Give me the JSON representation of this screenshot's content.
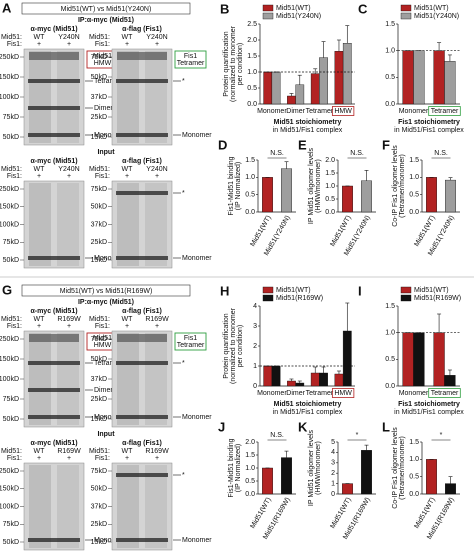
{
  "blot_panels": [
    {
      "letter": "A",
      "header": "Mid51(WT) vs Mid51(Y240N)",
      "ip_label": "IP:α-myc (Mid51)",
      "input_label": "Input",
      "blots": [
        {
          "title": "α-myc (Mid51)",
          "rows": [
            [
              "Mid51:",
              "WT",
              "Y240N"
            ],
            [
              "Fis1:",
              "+",
              "+"
            ]
          ],
          "markers": [
            "250kD",
            "150kD",
            "100kD",
            "75kD",
            "50kD"
          ],
          "boxed": [
            "Mid51",
            "HMW"
          ],
          "boxed_color": "#b22222",
          "annotations": [
            "Tetramer",
            "Dimer",
            "Monomer"
          ]
        },
        {
          "title": "α-flag (Fis1)",
          "rows": [
            [
              "Mid51:",
              "WT",
              "Y240N"
            ],
            [
              "Fis1:",
              "+",
              "+"
            ]
          ],
          "markers": [
            "75kD",
            "50kD",
            "37kD",
            "25kD",
            "15kD"
          ],
          "boxed": [
            "Fis1",
            "Tetramer"
          ],
          "boxed_color": "#2e9e3e",
          "annotations": [
            "*",
            "Monomer"
          ]
        },
        {
          "title": "α-myc (Mid51)",
          "rows": [
            [
              "Mid51:",
              "WT",
              "Y240N"
            ],
            [
              "Fis1:",
              "+",
              "+"
            ]
          ],
          "markers": [
            "250kD",
            "150kD",
            "100kD",
            "75kD",
            "50kD"
          ],
          "annotations": [
            "Monomer"
          ]
        },
        {
          "title": "α-flag (Fis1)",
          "rows": [
            [
              "Mid51:",
              "WT",
              "Y240N"
            ],
            [
              "Fis1:",
              "+",
              "+"
            ]
          ],
          "markers": [
            "75kD",
            "50kD",
            "37kD",
            "25kD",
            "15kD"
          ],
          "annotations": [
            "*",
            "Monomer"
          ]
        }
      ]
    },
    {
      "letter": "G",
      "header": "Mid51(WT) vs Mid51(R169W)",
      "ip_label": "IP:α-myc (Mid51)",
      "input_label": "Input",
      "blots": [
        {
          "title": "α-myc (Mid51)",
          "rows": [
            [
              "Mid51:",
              "WT",
              "R169W"
            ],
            [
              "Fis1:",
              "+",
              "+"
            ]
          ],
          "markers": [
            "250kD",
            "150kD",
            "100kD",
            "75kD",
            "50kD"
          ],
          "boxed": [
            "Mid51",
            "HMW"
          ],
          "boxed_color": "#b22222",
          "annotations": [
            "Tetramer",
            "Dimer",
            "Monomer"
          ]
        },
        {
          "title": "α-flag (Fis1)",
          "rows": [
            [
              "Mid51:",
              "WT",
              "R169W"
            ],
            [
              "Fis1:",
              "+",
              "+"
            ]
          ],
          "markers": [
            "75kD",
            "50kD",
            "37kD",
            "25kD",
            "15kD"
          ],
          "boxed": [
            "Fis1",
            "Tetramer"
          ],
          "boxed_color": "#2e9e3e",
          "annotations": [
            "*",
            "Monomer"
          ]
        },
        {
          "title": "α-myc (Mid51)",
          "rows": [
            [
              "Mid51:",
              "WT",
              "R169W"
            ],
            [
              "Fis1:",
              "+",
              "+"
            ]
          ],
          "markers": [
            "250kD",
            "150kD",
            "100kD",
            "75kD",
            "50kD"
          ],
          "annotations": [
            "Monomer"
          ]
        },
        {
          "title": "α-flag (Fis1)",
          "rows": [
            [
              "Mid51:",
              "WT",
              "R169W"
            ],
            [
              "Fis1:",
              "+",
              "+"
            ]
          ],
          "markers": [
            "75kD",
            "50kD",
            "37kD",
            "25kD",
            "15kD"
          ],
          "annotations": [
            "*",
            "Monomer"
          ]
        }
      ]
    }
  ],
  "chart_data": [
    {
      "type": "bar",
      "letter": "B",
      "ylabel": [
        "Protein quantification",
        "(normalized to monomer",
        "per condition)"
      ],
      "title": "Mid51 stoichiometry",
      "subtitle": "in Mid51/Fis1 complex",
      "categories": [
        "Monomer",
        "Dimer",
        "Tetramer",
        "HMW"
      ],
      "series": [
        {
          "name": "Mid51(WT)",
          "color": "#b22222",
          "values": [
            1,
            0.25,
            0.95,
            1.65
          ],
          "errors": [
            0,
            0.08,
            0.15,
            0.35
          ]
        },
        {
          "name": "Mid51(Y240N)",
          "color": "#9e9e9e",
          "values": [
            1,
            0.6,
            1.45,
            1.9
          ],
          "errors": [
            0,
            0.3,
            0.5,
            0.55
          ]
        }
      ],
      "ylim": [
        0,
        2.5
      ],
      "yticks": [
        {
          "value": 0,
          "label": "0.0"
        },
        {
          "value": 0.5,
          "label": "0.5"
        },
        {
          "value": 1,
          "label": "1.0"
        },
        {
          "value": 1.5,
          "label": "1.5"
        },
        {
          "value": 2,
          "label": "2.0"
        },
        {
          "value": 2.5,
          "label": "2.5"
        }
      ],
      "hline": 1,
      "legend": true,
      "highlight": {
        "index": 3,
        "color": "#b22222"
      }
    },
    {
      "type": "bar",
      "letter": "C",
      "title": "Fis1 stoichiometry",
      "subtitle": "in Mid51/Fis1 complex",
      "categories": [
        "Monomer",
        "Tetramer"
      ],
      "series": [
        {
          "name": "Mid51(WT)",
          "color": "#b22222",
          "values": [
            1,
            1
          ],
          "errors": [
            0,
            0.15
          ]
        },
        {
          "name": "Mid51(Y240N)",
          "color": "#9e9e9e",
          "values": [
            1,
            0.8
          ],
          "errors": [
            0,
            0.12
          ]
        }
      ],
      "ylim": [
        0,
        1.5
      ],
      "yticks": [
        {
          "value": 0,
          "label": "0.0"
        },
        {
          "value": 0.5,
          "label": "0.5"
        },
        {
          "value": 1,
          "label": "1.0"
        },
        {
          "value": 1.5,
          "label": "1.5"
        }
      ],
      "hline": 1,
      "legend": true,
      "highlight": {
        "index": 1,
        "color": "#2e9e3e"
      }
    },
    {
      "type": "bar",
      "letter": "D",
      "ylabel": [
        "Fis1-Mid51 binding",
        "(IP Normalized)"
      ],
      "categories": [
        "Mid51(WT)",
        "Mid51(Y240N)"
      ],
      "values": [
        1,
        1.25
      ],
      "errors": [
        0,
        0.2
      ],
      "colors": [
        "#b22222",
        "#9e9e9e"
      ],
      "ylim": [
        0,
        1.5
      ],
      "yticks": [
        {
          "value": 0,
          "label": "0.0"
        },
        {
          "value": 0.5,
          "label": "0.5"
        },
        {
          "value": 1,
          "label": "1.0"
        },
        {
          "value": 1.5,
          "label": "1.5"
        }
      ],
      "annotation": "N.S."
    },
    {
      "type": "bar",
      "letter": "E",
      "ylabel": [
        "IP Mid51 oligomer levels",
        "(HMW/monomer)"
      ],
      "categories": [
        "Mid51(WT)",
        "Mid51(Y240N)"
      ],
      "values": [
        1,
        1.2
      ],
      "errors": [
        0,
        0.4
      ],
      "colors": [
        "#b22222",
        "#9e9e9e"
      ],
      "ylim": [
        0,
        2
      ],
      "yticks": [
        {
          "value": 0,
          "label": "0.0"
        },
        {
          "value": 0.5,
          "label": "0.5"
        },
        {
          "value": 1,
          "label": "1.0"
        },
        {
          "value": 1.5,
          "label": "1.5"
        },
        {
          "value": 2,
          "label": "2.0"
        }
      ],
      "annotation": "N.S."
    },
    {
      "type": "bar",
      "letter": "F",
      "ylabel": [
        "Co-IP Fis1 oligomer levels",
        "(Tetramer/monomer)"
      ],
      "categories": [
        "Mid51(WT)",
        "Mid51(Y240N)"
      ],
      "values": [
        1,
        0.92
      ],
      "errors": [
        0,
        0.07
      ],
      "colors": [
        "#b22222",
        "#9e9e9e"
      ],
      "ylim": [
        0,
        1.5
      ],
      "yticks": [
        {
          "value": 0,
          "label": "0.0"
        },
        {
          "value": 0.5,
          "label": "0.5"
        },
        {
          "value": 1,
          "label": "1.0"
        },
        {
          "value": 1.5,
          "label": "1.5"
        }
      ],
      "annotation": "N.S."
    },
    {
      "type": "bar",
      "letter": "H",
      "ylabel": [
        "Protein quantification",
        "(normalized to monomer",
        "per condition)"
      ],
      "title": "Mid51 stoichiometry",
      "subtitle": "in Mid51/Fis1 complex",
      "categories": [
        "Monomer",
        "Dimer",
        "Tetramer",
        "HMW"
      ],
      "series": [
        {
          "name": "Mid51(WT)",
          "color": "#b22222",
          "values": [
            1,
            0.25,
            0.65,
            0.6
          ],
          "errors": [
            0,
            0.1,
            0.3,
            0.15
          ]
        },
        {
          "name": "Mid51(R169W)",
          "color": "#111111",
          "values": [
            1,
            0.15,
            0.65,
            2.75
          ],
          "errors": [
            0,
            0.1,
            0.3,
            1.4
          ]
        }
      ],
      "ylim": [
        0,
        4
      ],
      "yticks": [
        0,
        1,
        2,
        3,
        4
      ],
      "hline": 1,
      "legend": true,
      "highlight": {
        "index": 3,
        "color": "#b22222"
      }
    },
    {
      "type": "bar",
      "letter": "I",
      "title": "Fis1 stoichiometry",
      "subtitle": "in Mid51/Fis1 complex",
      "categories": [
        "Monomer",
        "Tetramer"
      ],
      "series": [
        {
          "name": "Mid51(WT)",
          "color": "#b22222",
          "values": [
            1,
            1
          ],
          "errors": [
            0,
            0.35
          ]
        },
        {
          "name": "Mid51(R169W)",
          "color": "#111111",
          "values": [
            1,
            0.2
          ],
          "errors": [
            0,
            0.1
          ]
        }
      ],
      "ylim": [
        0,
        1.5
      ],
      "yticks": [
        {
          "value": 0,
          "label": "0.0"
        },
        {
          "value": 0.5,
          "label": "0.5"
        },
        {
          "value": 1,
          "label": "1.0"
        },
        {
          "value": 1.5,
          "label": "1.5"
        }
      ],
      "hline": 1,
      "legend": true,
      "highlight": {
        "index": 1,
        "color": "#2e9e3e"
      }
    },
    {
      "type": "bar",
      "letter": "J",
      "ylabel": [
        "Fis1-Mid51 binding",
        "(IP Normalized)"
      ],
      "categories": [
        "Mid51(WT)",
        "Mid51(R169W)"
      ],
      "values": [
        1,
        1.4
      ],
      "errors": [
        0,
        0.25
      ],
      "colors": [
        "#b22222",
        "#111111"
      ],
      "ylim": [
        0,
        2
      ],
      "yticks": [
        {
          "value": 0,
          "label": "0.0"
        },
        {
          "value": 0.5,
          "label": "0.5"
        },
        {
          "value": 1,
          "label": "1.0"
        },
        {
          "value": 1.5,
          "label": "1.5"
        },
        {
          "value": 2,
          "label": "2.0"
        }
      ],
      "annotation": "N.S."
    },
    {
      "type": "bar",
      "letter": "K",
      "ylabel": [
        "IP Mid51 oligomer levels",
        "(HMW/monomer)"
      ],
      "categories": [
        "Mid51(WT)",
        "Mid51(R169W)"
      ],
      "values": [
        1,
        4.2
      ],
      "errors": [
        0,
        0.5
      ],
      "colors": [
        "#b22222",
        "#111111"
      ],
      "ylim": [
        0,
        5
      ],
      "yticks": [
        0,
        1,
        2,
        3,
        4,
        5
      ],
      "annotation": "*"
    },
    {
      "type": "bar",
      "letter": "L",
      "ylabel": [
        "Co-IP Fis1 oligomer levels",
        "(Tetramer/monomer)"
      ],
      "categories": [
        "Mid51(WT)",
        "Mid51(R169W)"
      ],
      "values": [
        1,
        0.3
      ],
      "errors": [
        0,
        0.2
      ],
      "colors": [
        "#b22222",
        "#111111"
      ],
      "ylim": [
        0,
        1.5
      ],
      "yticks": [
        {
          "value": 0,
          "label": "0.0"
        },
        {
          "value": 0.5,
          "label": "0.5"
        },
        {
          "value": 1,
          "label": "1.0"
        },
        {
          "value": 1.5,
          "label": "1.5"
        }
      ],
      "annotation": "*"
    }
  ]
}
